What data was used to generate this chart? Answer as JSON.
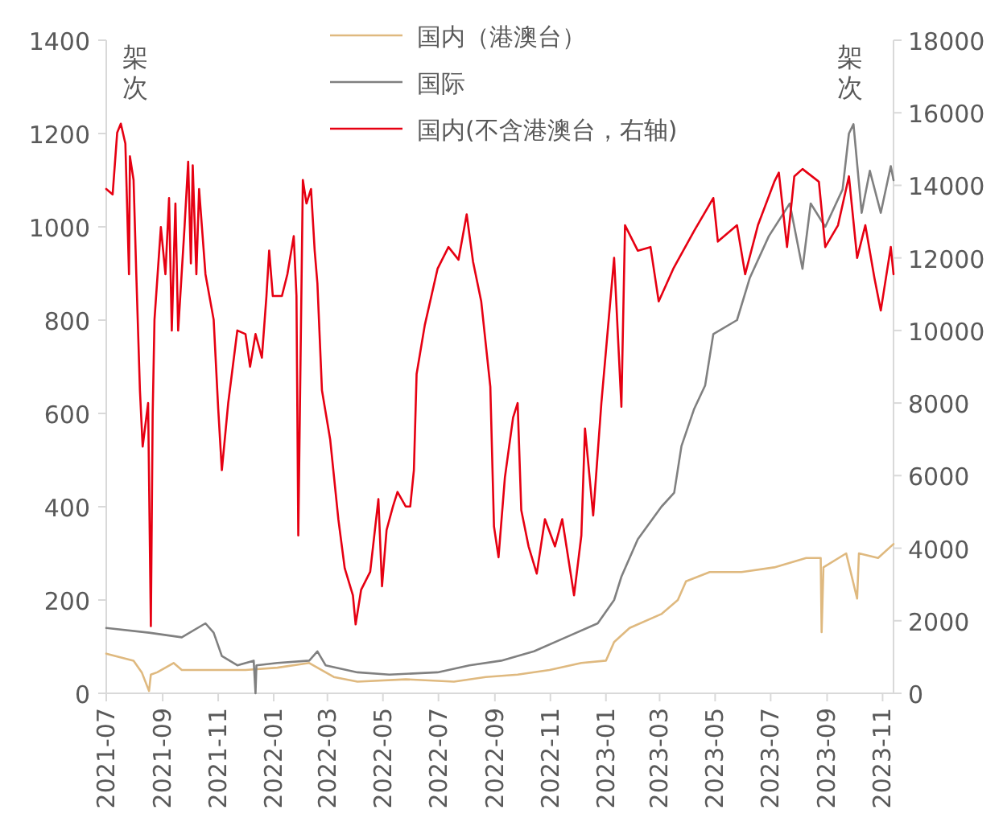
{
  "chart_data": {
    "type": "line",
    "ylabel": "架次",
    "y2label": "架次",
    "xlim": [
      "2021-07-01",
      "2023-11-13"
    ],
    "xticks": [
      "2021-07",
      "2021-09",
      "2021-11",
      "2022-01",
      "2022-03",
      "2022-05",
      "2022-07",
      "2022-09",
      "2022-11",
      "2023-01",
      "2023-03",
      "2023-05",
      "2023-07",
      "2023-09",
      "2023-11"
    ],
    "ylim": [
      0,
      1400
    ],
    "yticks": [
      0,
      200,
      400,
      600,
      800,
      1000,
      1200,
      1400
    ],
    "y2lim": [
      0,
      18000
    ],
    "y2ticks": [
      0,
      2000,
      4000,
      6000,
      8000,
      10000,
      12000,
      14000,
      16000,
      18000
    ],
    "grid": false,
    "legend": "top",
    "series": [
      {
        "name": "国内（港澳台）",
        "color": "#dfb97f",
        "x": [
          "2021-07-01",
          "2021-07-31",
          "2021-08-09",
          "2021-08-17",
          "2021-08-19",
          "2021-08-26",
          "2021-09-13",
          "2021-09-22",
          "2021-10-27",
          "2021-12-01",
          "2022-01-05",
          "2022-02-09",
          "2022-03-08",
          "2022-04-03",
          "2022-05-26",
          "2022-07-18",
          "2022-08-22",
          "2022-09-26",
          "2022-10-31",
          "2022-12-05",
          "2023-01-01",
          "2023-01-10",
          "2023-01-27",
          "2023-03-03",
          "2023-03-21",
          "2023-03-30",
          "2023-04-25",
          "2023-05-30",
          "2023-07-05",
          "2023-08-09",
          "2023-08-25",
          "2023-08-26",
          "2023-08-28",
          "2023-09-22",
          "2023-10-04",
          "2023-10-06",
          "2023-10-27",
          "2023-11-13"
        ],
        "values": [
          85,
          70,
          45,
          5,
          40,
          45,
          65,
          50,
          50,
          50,
          55,
          65,
          35,
          25,
          30,
          25,
          35,
          40,
          50,
          65,
          70,
          110,
          140,
          170,
          200,
          240,
          260,
          260,
          270,
          290,
          290,
          131,
          270,
          300,
          203,
          300,
          290,
          320
        ]
      },
      {
        "name": "国际",
        "color": "#808080",
        "x": [
          "2021-07-01",
          "2021-08-17",
          "2021-09-22",
          "2021-10-18",
          "2021-10-27",
          "2021-11-05",
          "2021-11-22",
          "2021-12-10",
          "2021-12-12",
          "2021-12-13",
          "2022-01-05",
          "2022-02-09",
          "2022-02-18",
          "2022-02-27",
          "2022-04-03",
          "2022-05-08",
          "2022-06-30",
          "2022-08-04",
          "2022-09-08",
          "2022-10-14",
          "2022-11-18",
          "2022-12-23",
          "2023-01-10",
          "2023-01-18",
          "2023-02-05",
          "2023-03-03",
          "2023-03-17",
          "2023-03-25",
          "2023-04-08",
          "2023-04-20",
          "2023-04-29",
          "2023-05-25",
          "2023-06-08",
          "2023-06-29",
          "2023-07-22",
          "2023-08-05",
          "2023-08-14",
          "2023-08-30",
          "2023-09-18",
          "2023-09-25",
          "2023-09-30",
          "2023-10-09",
          "2023-10-18",
          "2023-10-30",
          "2023-11-10",
          "2023-11-13"
        ],
        "values": [
          140,
          130,
          120,
          150,
          130,
          80,
          60,
          70,
          0,
          60,
          65,
          70,
          90,
          60,
          45,
          40,
          45,
          60,
          70,
          90,
          120,
          150,
          200,
          250,
          330,
          400,
          430,
          530,
          610,
          660,
          770,
          800,
          890,
          980,
          1050,
          910,
          1050,
          1000,
          1080,
          1200,
          1220,
          1030,
          1120,
          1030,
          1130,
          1100
        ]
      },
      {
        "name": "国内(不含港澳台，右轴)",
        "color": "#e60012",
        "axis": "y2",
        "x": [
          "2021-07-01",
          "2021-07-08",
          "2021-07-13",
          "2021-07-17",
          "2021-07-22",
          "2021-07-26",
          "2021-07-27",
          "2021-07-31",
          "2021-08-03",
          "2021-08-07",
          "2021-08-10",
          "2021-08-16",
          "2021-08-19",
          "2021-08-21",
          "2021-08-23",
          "2021-08-30",
          "2021-09-04",
          "2021-09-08",
          "2021-09-11",
          "2021-09-15",
          "2021-09-18",
          "2021-09-25",
          "2021-09-29",
          "2021-10-02",
          "2021-10-04",
          "2021-10-08",
          "2021-10-11",
          "2021-10-18",
          "2021-10-27",
          "2021-11-01",
          "2021-11-05",
          "2021-11-12",
          "2021-11-17",
          "2021-11-22",
          "2021-12-01",
          "2021-12-06",
          "2021-12-12",
          "2021-12-19",
          "2021-12-24",
          "2021-12-27",
          "2021-12-31",
          "2022-01-10",
          "2022-01-16",
          "2022-01-23",
          "2022-01-26",
          "2022-01-28",
          "2022-02-02",
          "2022-02-06",
          "2022-02-11",
          "2022-02-15",
          "2022-02-18",
          "2022-02-23",
          "2022-03-04",
          "2022-03-13",
          "2022-03-20",
          "2022-03-29",
          "2022-04-01",
          "2022-04-07",
          "2022-04-17",
          "2022-04-26",
          "2022-04-30",
          "2022-05-05",
          "2022-05-12",
          "2022-05-17",
          "2022-05-26",
          "2022-05-31",
          "2022-06-04",
          "2022-06-07",
          "2022-06-16",
          "2022-06-30",
          "2022-07-12",
          "2022-07-23",
          "2022-08-01",
          "2022-08-08",
          "2022-08-17",
          "2022-08-27",
          "2022-08-31",
          "2022-09-05",
          "2022-09-12",
          "2022-09-21",
          "2022-09-26",
          "2022-09-30",
          "2022-10-08",
          "2022-10-17",
          "2022-10-26",
          "2022-11-06",
          "2022-11-14",
          "2022-11-27",
          "2022-12-05",
          "2022-12-09",
          "2022-12-18",
          "2022-12-27",
          "2023-01-10",
          "2023-01-18",
          "2023-01-22",
          "2023-02-05",
          "2023-02-19",
          "2023-02-28",
          "2023-03-16",
          "2023-04-08",
          "2023-04-29",
          "2023-05-04",
          "2023-05-25",
          "2023-06-03",
          "2023-06-17",
          "2023-07-05",
          "2023-07-10",
          "2023-07-19",
          "2023-07-27",
          "2023-08-05",
          "2023-08-23",
          "2023-08-30",
          "2023-09-13",
          "2023-09-25",
          "2023-10-04",
          "2023-10-13",
          "2023-10-23",
          "2023-10-30",
          "2023-11-10",
          "2023-11-13"
        ],
        "values": [
          13900,
          13750,
          15450,
          15700,
          15150,
          11550,
          14800,
          14150,
          11550,
          8350,
          6800,
          8000,
          1850,
          7700,
          10300,
          12850,
          11550,
          13650,
          10000,
          13500,
          10000,
          12850,
          14650,
          11850,
          14550,
          11550,
          13900,
          11550,
          10300,
          7850,
          6150,
          8000,
          9000,
          10000,
          9900,
          9000,
          9900,
          9250,
          10950,
          12200,
          10950,
          10950,
          11550,
          12600,
          10950,
          4350,
          14150,
          13500,
          13900,
          12200,
          11300,
          8350,
          7000,
          4800,
          3450,
          2700,
          1900,
          2850,
          3350,
          5350,
          2950,
          4500,
          5150,
          5550,
          5150,
          5150,
          6150,
          8800,
          10150,
          11700,
          12300,
          11950,
          13200,
          11900,
          10800,
          8450,
          4600,
          3750,
          5950,
          7600,
          8000,
          5050,
          4050,
          3300,
          4800,
          4050,
          4800,
          2700,
          4350,
          7300,
          4900,
          8000,
          12000,
          7900,
          12900,
          12200,
          12300,
          10800,
          11700,
          12750,
          13650,
          12450,
          12900,
          11550,
          12900,
          14100,
          14350,
          12300,
          14250,
          14450,
          14100,
          12300,
          12900,
          14250,
          12000,
          12900,
          11450,
          10550,
          12300,
          11550
        ]
      }
    ]
  }
}
